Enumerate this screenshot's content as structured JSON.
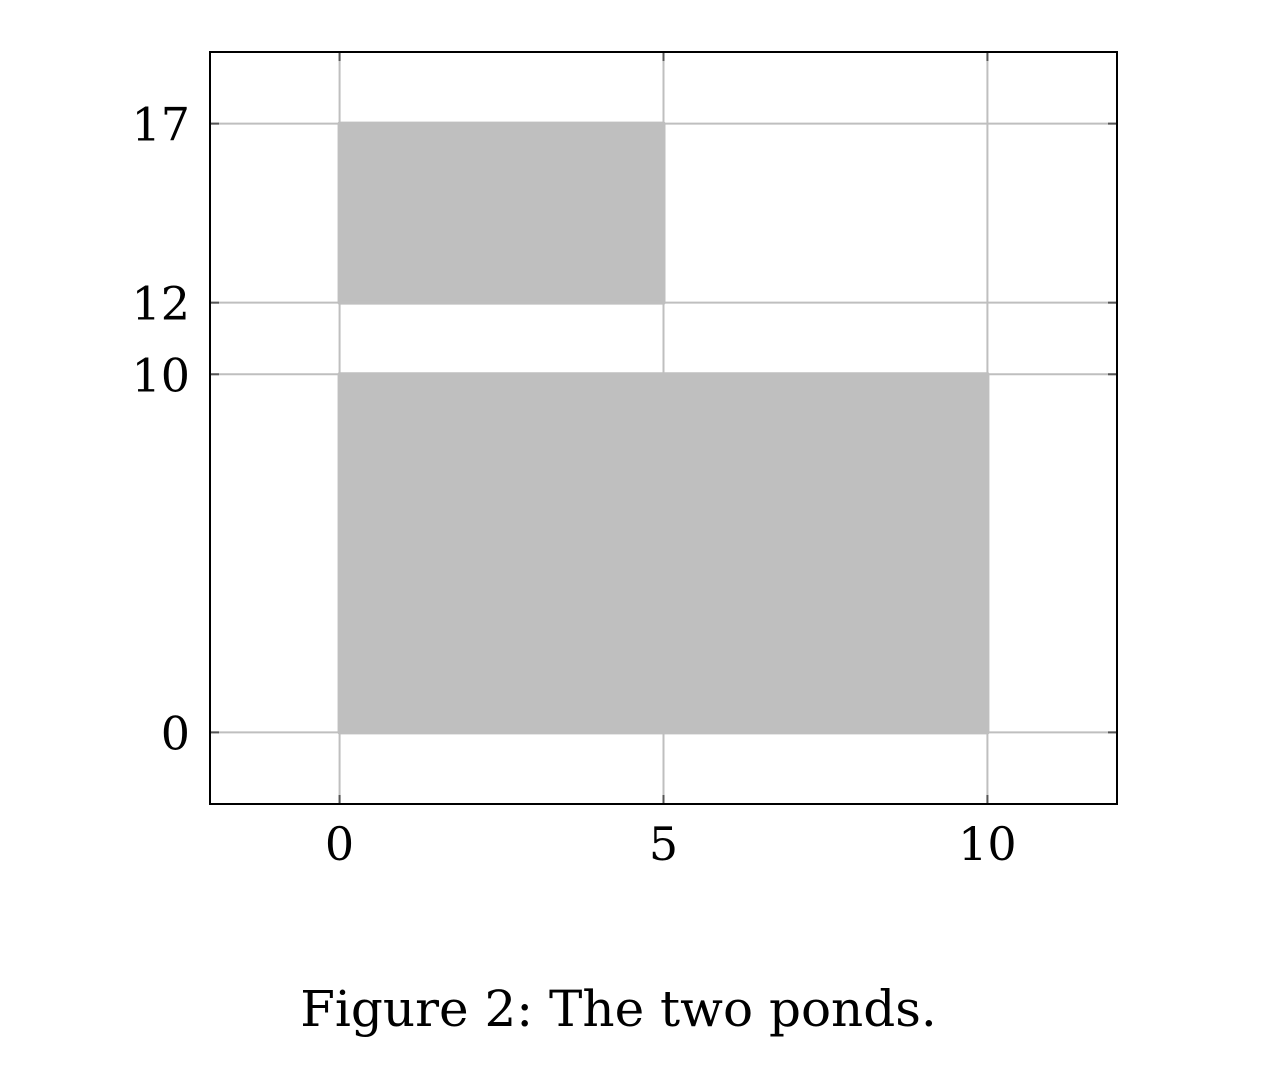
{
  "chart_data": {
    "type": "rect-plot",
    "title": "",
    "xlabel": "",
    "ylabel": "",
    "xlim": [
      -2,
      12
    ],
    "ylim": [
      -2,
      19
    ],
    "xticks": [
      0,
      5,
      10
    ],
    "yticks": [
      0,
      10,
      12,
      17
    ],
    "grid": true,
    "rectangles": [
      {
        "x0": 0,
        "x1": 10,
        "y0": 0,
        "y1": 10
      },
      {
        "x0": 0,
        "x1": 5,
        "y0": 12,
        "y1": 17
      }
    ],
    "colors": {
      "fill": "#bfbfbf",
      "grid": "#bfbfbf",
      "frame": "#000000"
    }
  },
  "caption": "Figure 2: The two ponds."
}
